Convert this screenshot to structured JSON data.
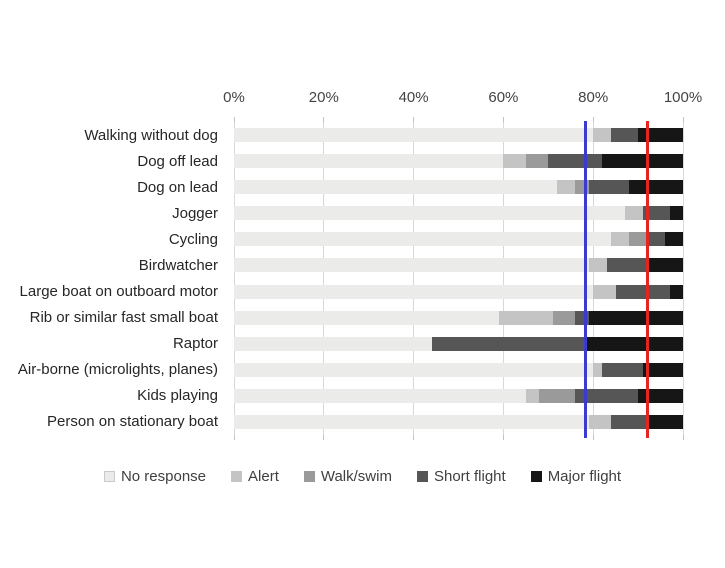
{
  "chart_data": {
    "type": "bar",
    "orientation": "horizontal",
    "stacked": true,
    "title": "",
    "xlabel": "",
    "ylabel": "",
    "x_axis": {
      "min": 0,
      "max": 100,
      "ticks": [
        "0%",
        "20%",
        "40%",
        "60%",
        "80%",
        "100%"
      ],
      "grid": true
    },
    "categories": [
      "Walking without dog",
      "Dog off lead",
      "Dog on lead",
      "Jogger",
      "Cycling",
      "Birdwatcher",
      "Large boat on outboard motor",
      "Rib or similar fast small boat",
      "Raptor",
      "Air-borne (microlights, planes)",
      "Kids playing",
      "Person on stationary boat"
    ],
    "series": [
      {
        "name": "No response",
        "color": "#ebebea",
        "values": [
          80,
          60,
          72,
          87,
          84,
          79,
          80,
          59,
          44,
          80,
          65,
          79
        ]
      },
      {
        "name": "Alert",
        "color": "#c4c4c4",
        "values": [
          4,
          5,
          4,
          4,
          4,
          4,
          5,
          12,
          0,
          2,
          3,
          5
        ]
      },
      {
        "name": "Walk/swim",
        "color": "#9a9a9a",
        "values": [
          0,
          5,
          3,
          0,
          4,
          0,
          0,
          5,
          0,
          0,
          8,
          0
        ]
      },
      {
        "name": "Short flight",
        "color": "#565656",
        "values": [
          6,
          12,
          9,
          6,
          4,
          9,
          12,
          3,
          34,
          9,
          14,
          8
        ]
      },
      {
        "name": "Major flight",
        "color": "#161616",
        "values": [
          10,
          18,
          12,
          3,
          4,
          8,
          3,
          21,
          22,
          9,
          10,
          8
        ]
      }
    ],
    "reference_lines": [
      {
        "name": "blue-reference-line",
        "value": 78.3,
        "color": "#3b3bd1"
      },
      {
        "name": "red-reference-line",
        "value": 92.0,
        "color": "#e52620"
      }
    ],
    "legend": {
      "position": "bottom-center",
      "no_response_swatch_border": "#c9c9c9"
    }
  }
}
